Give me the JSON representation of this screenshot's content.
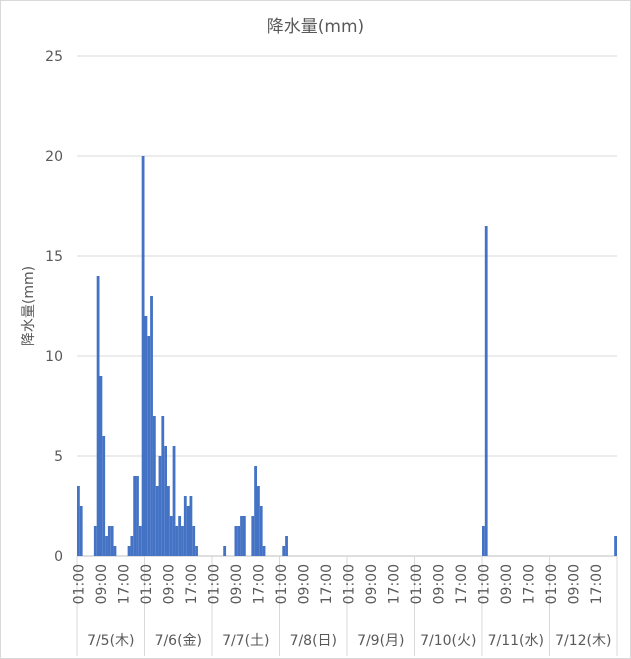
{
  "chart_data": {
    "type": "bar",
    "title": "降水量(mm)",
    "xlabel": "",
    "ylabel": "降水量(mm)",
    "ylim": [
      0,
      25
    ],
    "yticks": [
      0,
      5,
      10,
      15,
      20,
      25
    ],
    "grid": true,
    "legend": "none",
    "bar_color": "#4472c4",
    "grid_color": "#d9d9d9",
    "text_color": "#595959",
    "hours_per_day": 24,
    "x_tick_labels": [
      "01:00",
      "09:00",
      "17:00",
      "01:00",
      "09:00",
      "17:00",
      "01:00",
      "09:00",
      "17:00",
      "01:00",
      "09:00",
      "17:00",
      "01:00",
      "09:00",
      "17:00",
      "01:00",
      "09:00",
      "17:00",
      "01:00",
      "09:00",
      "17:00",
      "01:00",
      "09:00",
      "17:00"
    ],
    "days": [
      "7/5(木)",
      "7/6(金)",
      "7/7(土)",
      "7/8(日)",
      "7/9(月)",
      "7/10(火)",
      "7/11(水)",
      "7/12(木)"
    ],
    "categories": [
      "7/5 01:00",
      "7/5 02:00",
      "7/5 03:00",
      "7/5 04:00",
      "7/5 05:00",
      "7/5 06:00",
      "7/5 07:00",
      "7/5 08:00",
      "7/5 09:00",
      "7/5 10:00",
      "7/5 11:00",
      "7/5 12:00",
      "7/5 13:00",
      "7/5 14:00",
      "7/5 15:00",
      "7/5 16:00",
      "7/5 17:00",
      "7/5 18:00",
      "7/5 19:00",
      "7/5 20:00",
      "7/5 21:00",
      "7/5 22:00",
      "7/5 23:00",
      "7/5 24:00",
      "7/6 01:00",
      "7/6 02:00",
      "7/6 03:00",
      "7/6 04:00",
      "7/6 05:00",
      "7/6 06:00",
      "7/6 07:00",
      "7/6 08:00",
      "7/6 09:00",
      "7/6 10:00",
      "7/6 11:00",
      "7/6 12:00",
      "7/6 13:00",
      "7/6 14:00",
      "7/6 15:00",
      "7/6 16:00",
      "7/6 17:00",
      "7/6 18:00",
      "7/6 19:00",
      "7/6 20:00",
      "7/6 21:00",
      "7/6 22:00",
      "7/6 23:00",
      "7/6 24:00",
      "7/7 01:00",
      "7/7 02:00",
      "7/7 03:00",
      "7/7 04:00",
      "7/7 05:00",
      "7/7 06:00",
      "7/7 07:00",
      "7/7 08:00",
      "7/7 09:00",
      "7/7 10:00",
      "7/7 11:00",
      "7/7 12:00",
      "7/7 13:00",
      "7/7 14:00",
      "7/7 15:00",
      "7/7 16:00",
      "7/7 17:00",
      "7/7 18:00",
      "7/7 19:00",
      "7/7 20:00",
      "7/7 21:00",
      "7/7 22:00",
      "7/7 23:00",
      "7/7 24:00",
      "7/8 01:00",
      "7/8 02:00",
      "7/8 03:00",
      "7/8 04:00",
      "7/8 05:00",
      "7/8 06:00",
      "7/8 07:00",
      "7/8 08:00",
      "7/8 09:00",
      "7/8 10:00",
      "7/8 11:00",
      "7/8 12:00",
      "7/8 13:00",
      "7/8 14:00",
      "7/8 15:00",
      "7/8 16:00",
      "7/8 17:00",
      "7/8 18:00",
      "7/8 19:00",
      "7/8 20:00",
      "7/8 21:00",
      "7/8 22:00",
      "7/8 23:00",
      "7/8 24:00",
      "7/9 01:00",
      "7/9 02:00",
      "7/9 03:00",
      "7/9 04:00",
      "7/9 05:00",
      "7/9 06:00",
      "7/9 07:00",
      "7/9 08:00",
      "7/9 09:00",
      "7/9 10:00",
      "7/9 11:00",
      "7/9 12:00",
      "7/9 13:00",
      "7/9 14:00",
      "7/9 15:00",
      "7/9 16:00",
      "7/9 17:00",
      "7/9 18:00",
      "7/9 19:00",
      "7/9 20:00",
      "7/9 21:00",
      "7/9 22:00",
      "7/9 23:00",
      "7/9 24:00",
      "7/10 01:00",
      "7/10 02:00",
      "7/10 03:00",
      "7/10 04:00",
      "7/10 05:00",
      "7/10 06:00",
      "7/10 07:00",
      "7/10 08:00",
      "7/10 09:00",
      "7/10 10:00",
      "7/10 11:00",
      "7/10 12:00",
      "7/10 13:00",
      "7/10 14:00",
      "7/10 15:00",
      "7/10 16:00",
      "7/10 17:00",
      "7/10 18:00",
      "7/10 19:00",
      "7/10 20:00",
      "7/10 21:00",
      "7/10 22:00",
      "7/10 23:00",
      "7/10 24:00",
      "7/11 01:00",
      "7/11 02:00",
      "7/11 03:00",
      "7/11 04:00",
      "7/11 05:00",
      "7/11 06:00",
      "7/11 07:00",
      "7/11 08:00",
      "7/11 09:00",
      "7/11 10:00",
      "7/11 11:00",
      "7/11 12:00",
      "7/11 13:00",
      "7/11 14:00",
      "7/11 15:00",
      "7/11 16:00",
      "7/11 17:00",
      "7/11 18:00",
      "7/11 19:00",
      "7/11 20:00",
      "7/11 21:00",
      "7/11 22:00",
      "7/11 23:00",
      "7/11 24:00",
      "7/12 01:00",
      "7/12 02:00",
      "7/12 03:00",
      "7/12 04:00",
      "7/12 05:00",
      "7/12 06:00",
      "7/12 07:00",
      "7/12 08:00",
      "7/12 09:00",
      "7/12 10:00",
      "7/12 11:00",
      "7/12 12:00",
      "7/12 13:00",
      "7/12 14:00",
      "7/12 15:00",
      "7/12 16:00",
      "7/12 17:00",
      "7/12 18:00",
      "7/12 19:00",
      "7/12 20:00",
      "7/12 21:00",
      "7/12 22:00",
      "7/12 23:00",
      "7/12 24:00"
    ],
    "values": [
      3.5,
      2.5,
      0,
      0,
      0,
      0,
      1.5,
      14,
      9,
      6,
      1,
      1.5,
      1.5,
      0.5,
      0,
      0,
      0,
      0,
      0.5,
      1,
      4,
      4,
      1.5,
      20,
      12,
      11,
      13,
      7,
      3.5,
      5,
      7,
      5.5,
      3.5,
      2,
      5.5,
      1.5,
      2,
      1.5,
      3,
      2.5,
      3,
      1.5,
      0.5,
      0,
      0,
      0,
      0,
      0,
      0,
      0,
      0,
      0,
      0.5,
      0,
      0,
      0,
      1.5,
      1.5,
      2,
      2,
      0,
      0,
      2,
      4.5,
      3.5,
      2.5,
      0.5,
      0,
      0,
      0,
      0,
      0,
      0,
      0.5,
      1,
      0,
      0,
      0,
      0,
      0,
      0,
      0,
      0,
      0,
      0,
      0,
      0,
      0,
      0,
      0,
      0,
      0,
      0,
      0,
      0,
      0,
      0,
      0,
      0,
      0,
      0,
      0,
      0,
      0,
      0,
      0,
      0,
      0,
      0,
      0,
      0,
      0,
      0,
      0,
      0,
      0,
      0,
      0,
      0,
      0,
      0,
      0,
      0,
      0,
      0,
      0,
      0,
      0,
      0,
      0,
      0,
      0,
      0,
      0,
      0,
      0,
      0,
      0,
      0,
      0,
      0,
      0,
      0,
      0,
      1.5,
      16.5,
      0,
      0,
      0,
      0,
      0,
      0,
      0,
      0,
      0,
      0,
      0,
      0,
      0,
      0,
      0,
      0,
      0,
      0,
      0,
      0,
      0,
      0,
      0,
      0,
      0,
      0,
      0,
      0,
      0,
      0,
      0,
      0,
      0,
      0,
      0,
      0,
      0,
      0,
      0,
      0,
      0,
      0,
      0,
      0,
      0,
      1
    ]
  }
}
